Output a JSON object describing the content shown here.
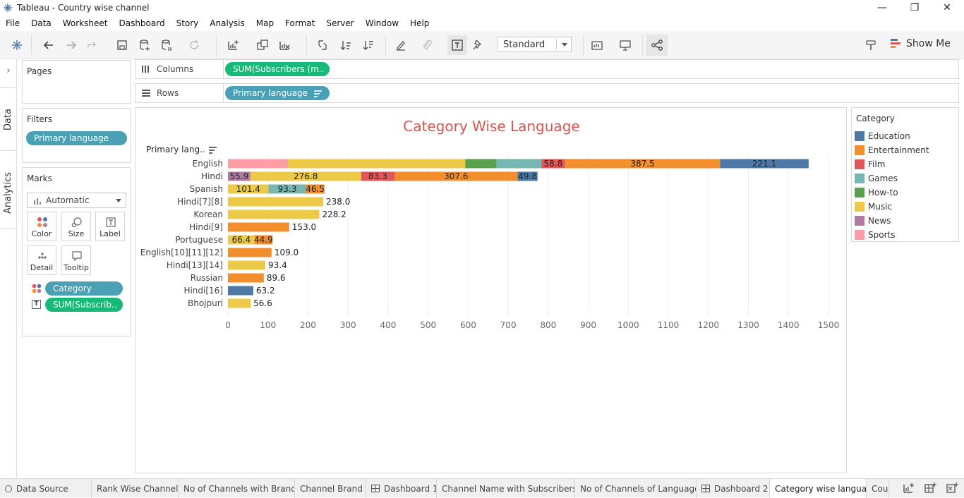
{
  "window": {
    "title": "Tableau - Country wise channel",
    "minimize": "—",
    "restore": "❐",
    "close": "✕"
  },
  "menu": [
    "File",
    "Data",
    "Worksheet",
    "Dashboard",
    "Story",
    "Analysis",
    "Map",
    "Format",
    "Server",
    "Window",
    "Help"
  ],
  "toolbar": {
    "fit_value": "Standard",
    "show_me": "Show Me"
  },
  "side_tabs": {
    "data": "Data",
    "analytics": "Analytics"
  },
  "pages": {
    "header": "Pages"
  },
  "filters": {
    "header": "Filters",
    "pill": "Primary language"
  },
  "marks": {
    "header": "Marks",
    "type": "Automatic",
    "buttons": [
      "Color",
      "Size",
      "Label",
      "Detail",
      "Tooltip"
    ],
    "fields": [
      "Category",
      "SUM(Subscrib.."
    ]
  },
  "shelves": {
    "columns_label": "Columns",
    "columns_pill": "SUM(Subscribers (m..",
    "rows_label": "Rows",
    "rows_pill": "Primary language"
  },
  "colors": {
    "Education": "#4e79a7",
    "Entertainment": "#f28e2b",
    "Film": "#e15759",
    "Games": "#76b7b2",
    "How-to": "#59a14f",
    "Music": "#edc948",
    "News": "#b07aa1",
    "Sports": "#ff9da7"
  },
  "legend": {
    "header": "Category",
    "items": [
      "Education",
      "Entertainment",
      "Film",
      "Games",
      "How-to",
      "Music",
      "News",
      "Sports"
    ]
  },
  "chart_data": {
    "type": "bar",
    "orientation": "horizontal",
    "stacked": true,
    "title": "Category Wise Language",
    "row_header": "Primary lang..",
    "xlim": [
      0,
      1500
    ],
    "x_ticks": [
      0,
      100,
      200,
      300,
      400,
      500,
      600,
      700,
      800,
      900,
      1000,
      1100,
      1200,
      1300,
      1400,
      1500
    ],
    "grid": true,
    "categories": [
      "English",
      "Hindi",
      "Spanish",
      "Hindi[7][8]",
      "Korean",
      "Hindi[9]",
      "Portuguese",
      "English[10][11][12]",
      "Hindi[13][14]",
      "Russian",
      "Hindi[16]",
      "Bhojpuri"
    ],
    "rows": [
      {
        "label": "English",
        "segments": [
          {
            "category": "Sports",
            "value": 150
          },
          {
            "category": "Music",
            "value": 443
          },
          {
            "category": "How-to",
            "value": 78
          },
          {
            "category": "Games",
            "value": 112
          },
          {
            "category": "Film",
            "value": 58.8,
            "text": "58.8"
          },
          {
            "category": "Entertainment",
            "value": 387.5,
            "text": "387.5"
          },
          {
            "category": "Education",
            "value": 221.1,
            "text": "221.1"
          }
        ]
      },
      {
        "label": "Hindi",
        "segments": [
          {
            "category": "News",
            "value": 55.9,
            "text": "55.9"
          },
          {
            "category": "Music",
            "value": 276.8,
            "text": "276.8"
          },
          {
            "category": "Film",
            "value": 83.3,
            "text": "83.3"
          },
          {
            "category": "Entertainment",
            "value": 307.6,
            "text": "307.6"
          },
          {
            "category": "Education",
            "value": 49.8,
            "text": "49.8"
          }
        ]
      },
      {
        "label": "Spanish",
        "segments": [
          {
            "category": "Music",
            "value": 101.4,
            "text": "101.4"
          },
          {
            "category": "Games",
            "value": 93.3,
            "text": "93.3"
          },
          {
            "category": "Entertainment",
            "value": 46.5,
            "text": "46.5"
          }
        ]
      },
      {
        "label": "Hindi[7][8]",
        "segments": [
          {
            "category": "Music",
            "value": 238.0
          }
        ],
        "total_text": "238.0"
      },
      {
        "label": "Korean",
        "segments": [
          {
            "category": "Music",
            "value": 228.2
          }
        ],
        "total_text": "228.2"
      },
      {
        "label": "Hindi[9]",
        "segments": [
          {
            "category": "Entertainment",
            "value": 153.0
          }
        ],
        "total_text": "153.0"
      },
      {
        "label": "Portuguese",
        "segments": [
          {
            "category": "Music",
            "value": 66.4,
            "text": "66.4"
          },
          {
            "category": "Entertainment",
            "value": 44.9,
            "text": "44.9"
          }
        ]
      },
      {
        "label": "English[10][11][12]",
        "segments": [
          {
            "category": "Entertainment",
            "value": 109.0
          }
        ],
        "total_text": "109.0"
      },
      {
        "label": "Hindi[13][14]",
        "segments": [
          {
            "category": "Music",
            "value": 93.4
          }
        ],
        "total_text": "93.4"
      },
      {
        "label": "Russian",
        "segments": [
          {
            "category": "Entertainment",
            "value": 89.6
          }
        ],
        "total_text": "89.6"
      },
      {
        "label": "Hindi[16]",
        "segments": [
          {
            "category": "Education",
            "value": 63.2
          }
        ],
        "total_text": "63.2"
      },
      {
        "label": "Bhojpuri",
        "segments": [
          {
            "category": "Music",
            "value": 56.6
          }
        ],
        "total_text": "56.6"
      }
    ]
  },
  "sheet_tabs": [
    {
      "label": "Data Source",
      "kind": "datasource"
    },
    {
      "label": "Rank Wise Channel",
      "kind": "sheet"
    },
    {
      "label": "No of Channels with Brand",
      "kind": "sheet"
    },
    {
      "label": "Channel Brand",
      "kind": "sheet"
    },
    {
      "label": "Dashboard 1",
      "kind": "dashboard"
    },
    {
      "label": "Channel Name with Subscribers",
      "kind": "sheet"
    },
    {
      "label": "No of Channels of Language",
      "kind": "sheet"
    },
    {
      "label": "Dashboard 2",
      "kind": "dashboard"
    },
    {
      "label": "Category wise language",
      "kind": "sheet",
      "active": true
    },
    {
      "label": "Cou",
      "kind": "sheet"
    }
  ]
}
